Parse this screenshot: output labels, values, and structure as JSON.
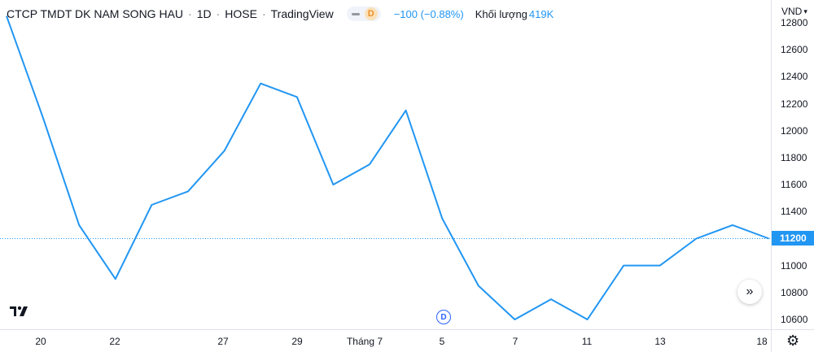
{
  "legend": {
    "symbol": "CTCP TMDT DK NAM SONG HAU",
    "interval": "1D",
    "exchange": "HOSE",
    "source": "TradingView",
    "badge": "D",
    "change": "−100 (−0.88%)",
    "volume_label": "Khối lượng",
    "volume_value": "419K"
  },
  "price_scale": {
    "currency": "VND",
    "last_price_label": "11200"
  },
  "event_marker": "D",
  "icons": {
    "logo": "tradingview-logo-icon",
    "scroll": "scroll-to-realtime-icon",
    "settings": "gear-icon",
    "visibility": "eye-icon"
  },
  "colors": {
    "line": "#2196f3",
    "last_price_badge": "#2196f3",
    "change_text": "#2196f3",
    "event_marker": "#2962ff"
  },
  "chart_data": {
    "type": "line",
    "x_tick_labels": [
      "20",
      "22",
      "27",
      "29",
      "Tháng 7",
      "5",
      "7",
      "11",
      "13",
      "18"
    ],
    "y_tick_labels": [
      "12800",
      "12600",
      "12400",
      "12200",
      "12000",
      "11800",
      "11600",
      "11400",
      "11200",
      "11000",
      "10800",
      "10600"
    ],
    "ylim": [
      10540,
      12820
    ],
    "last_value": 11200,
    "series": [
      {
        "values": [
          12850,
          12100,
          11300,
          10900,
          11450,
          11550,
          11850,
          12350,
          12250,
          11600,
          11750,
          12150,
          11350,
          10850,
          10600,
          10750,
          10600,
          11000,
          11000,
          11200,
          11300,
          11200
        ]
      }
    ]
  }
}
